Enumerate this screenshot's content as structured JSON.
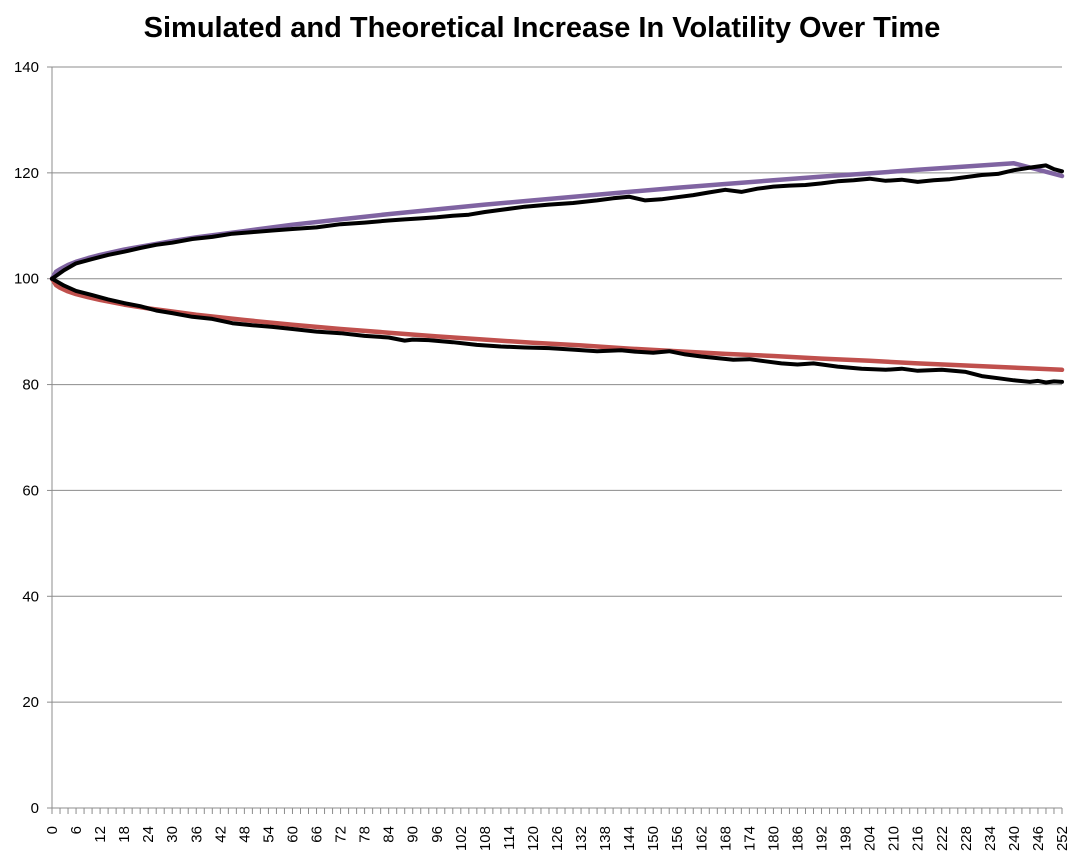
{
  "chart_data": {
    "type": "line",
    "title": "Simulated and Theoretical Increase In Volatility Over Time",
    "xlabel": "",
    "ylabel": "",
    "ylim": [
      0,
      140
    ],
    "yticks": [
      0,
      20,
      40,
      60,
      80,
      100,
      120,
      140
    ],
    "xlim": [
      0,
      252
    ],
    "xticks": [
      0,
      6,
      12,
      18,
      24,
      30,
      36,
      42,
      48,
      54,
      60,
      66,
      72,
      78,
      84,
      90,
      96,
      102,
      108,
      114,
      120,
      126,
      132,
      138,
      144,
      150,
      156,
      162,
      168,
      174,
      180,
      186,
      192,
      198,
      204,
      210,
      216,
      222,
      228,
      234,
      240,
      246,
      252
    ],
    "grid": true,
    "legend": "none",
    "series": [
      {
        "style": "theoretical",
        "color": "#c0504d",
        "x": [
          0,
          1,
          2,
          4,
          6,
          9,
          12,
          18,
          24,
          30,
          36,
          48,
          60,
          72,
          84,
          96,
          108,
          120,
          132,
          144,
          156,
          168,
          180,
          192,
          204,
          216,
          228,
          240,
          252
        ],
        "values": [
          100,
          98.8,
          98.3,
          97.6,
          97.1,
          96.5,
          96.0,
          95.1,
          94.4,
          93.8,
          93.2,
          92.2,
          91.3,
          90.5,
          89.8,
          89.1,
          88.5,
          87.9,
          87.4,
          86.8,
          86.3,
          85.8,
          85.4,
          84.9,
          84.5,
          84.0,
          83.6,
          83.2,
          82.8
        ]
      },
      {
        "style": "theoretical",
        "color": "#8064a2",
        "x": [
          0,
          1,
          2,
          4,
          6,
          9,
          12,
          18,
          24,
          30,
          36,
          48,
          60,
          72,
          84,
          96,
          108,
          120,
          132,
          144,
          156,
          168,
          180,
          192,
          204,
          216,
          228,
          240,
          252
        ],
        "values": [
          100,
          101.3,
          101.8,
          102.6,
          103.2,
          103.9,
          104.5,
          105.5,
          106.3,
          107.1,
          107.8,
          109.0,
          110.2,
          111.2,
          112.2,
          113.1,
          114.0,
          114.8,
          115.6,
          116.4,
          117.2,
          117.9,
          118.6,
          119.3,
          119.9,
          120.6,
          121.2,
          121.8,
          119.4
        ]
      },
      {
        "style": "simulated",
        "color": "#000000",
        "x": [
          0,
          3,
          6,
          10,
          14,
          18,
          22,
          26,
          30,
          35,
          40,
          45,
          50,
          55,
          60,
          66,
          72,
          78,
          84,
          88,
          90,
          94,
          100,
          106,
          112,
          118,
          124,
          130,
          136,
          142,
          146,
          150,
          154,
          158,
          162,
          166,
          170,
          174,
          178,
          182,
          186,
          190,
          196,
          202,
          208,
          212,
          216,
          222,
          228,
          232,
          236,
          240,
          244,
          246,
          248,
          250,
          252
        ],
        "values": [
          100,
          98.7,
          97.7,
          96.9,
          96.1,
          95.4,
          94.8,
          94.0,
          93.5,
          92.8,
          92.4,
          91.6,
          91.2,
          90.9,
          90.5,
          90.0,
          89.7,
          89.2,
          88.9,
          88.3,
          88.5,
          88.4,
          88.0,
          87.5,
          87.2,
          87.0,
          86.9,
          86.6,
          86.3,
          86.5,
          86.2,
          86.0,
          86.3,
          85.7,
          85.3,
          85.0,
          84.7,
          84.8,
          84.4,
          84.0,
          83.8,
          84.0,
          83.4,
          83.0,
          82.8,
          83.0,
          82.6,
          82.8,
          82.4,
          81.6,
          81.2,
          80.8,
          80.5,
          80.7,
          80.4,
          80.6,
          80.5
        ]
      },
      {
        "style": "simulated",
        "color": "#000000",
        "x": [
          0,
          3,
          6,
          10,
          14,
          18,
          22,
          26,
          30,
          35,
          40,
          45,
          50,
          55,
          60,
          66,
          72,
          78,
          84,
          88,
          92,
          96,
          100,
          104,
          108,
          112,
          118,
          124,
          130,
          136,
          140,
          144,
          148,
          152,
          156,
          160,
          164,
          168,
          172,
          176,
          180,
          184,
          188,
          192,
          196,
          200,
          204,
          208,
          212,
          216,
          220,
          224,
          228,
          232,
          236,
          240,
          244,
          248,
          250,
          252
        ],
        "values": [
          100,
          101.6,
          102.9,
          103.7,
          104.5,
          105.1,
          105.8,
          106.4,
          106.8,
          107.5,
          107.9,
          108.5,
          108.8,
          109.1,
          109.4,
          109.7,
          110.3,
          110.6,
          111.0,
          111.2,
          111.4,
          111.6,
          111.9,
          112.1,
          112.6,
          113.0,
          113.6,
          114.0,
          114.3,
          114.8,
          115.2,
          115.5,
          114.8,
          115.0,
          115.4,
          115.8,
          116.3,
          116.8,
          116.4,
          117.0,
          117.4,
          117.6,
          117.7,
          118.0,
          118.4,
          118.6,
          118.9,
          118.5,
          118.7,
          118.3,
          118.6,
          118.8,
          119.2,
          119.6,
          119.8,
          120.5,
          121.0,
          121.4,
          120.7,
          120.3
        ]
      }
    ]
  }
}
